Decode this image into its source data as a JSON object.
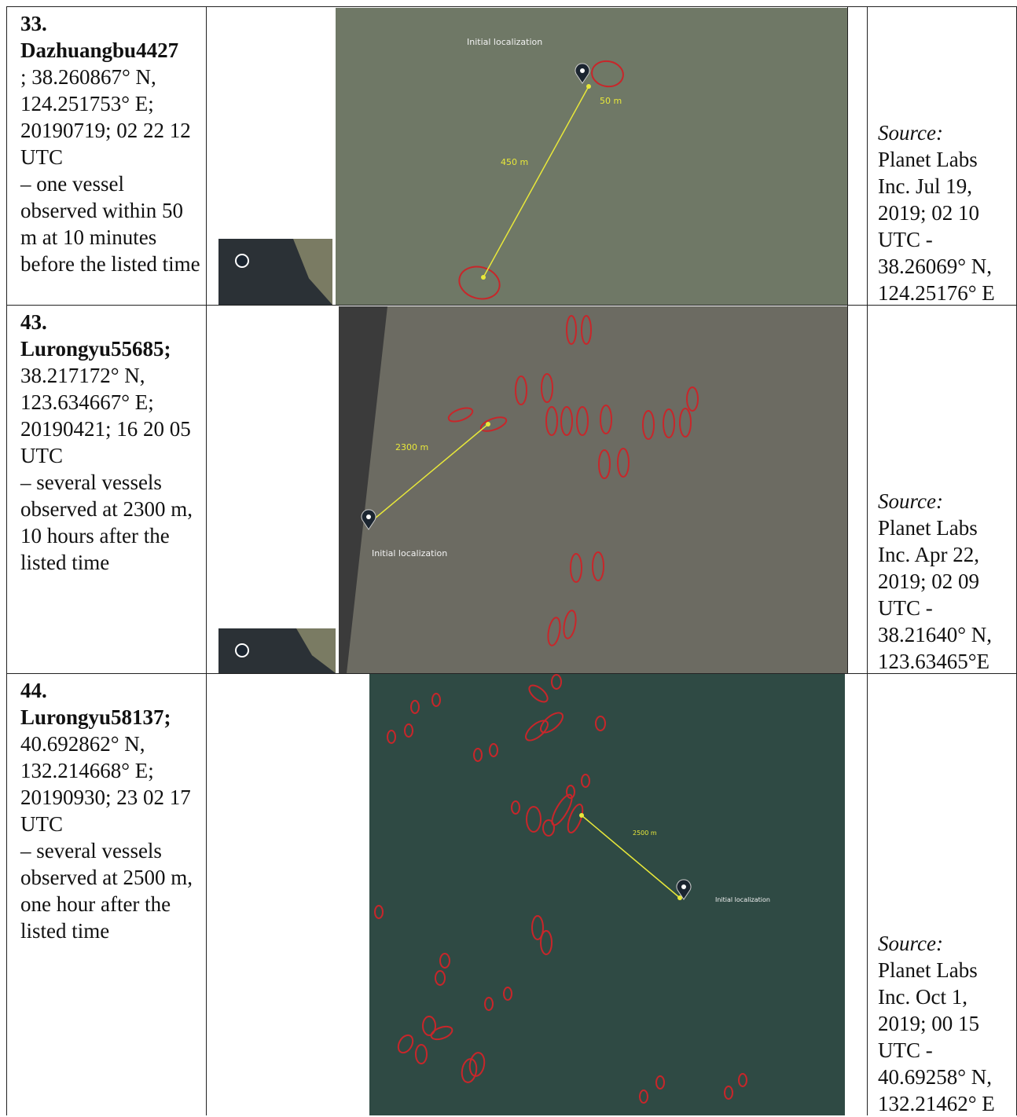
{
  "rows": [
    {
      "number": "33.",
      "name": "Dazhuangbu4427",
      "details": "; 38.260867° N, 124.251753° E; 20190719; 02 22 12 UTC",
      "observation": "– one vessel observed within 50 m at 10 minutes before the listed time",
      "image_labels": {
        "localization": "Initial localization",
        "distance": "450 m",
        "offset": "50 m"
      },
      "source_label": "Source:",
      "source": "Planet Labs Inc. Jul 19, 2019; 02 10 UTC - 38.26069° N, 124.25176° E"
    },
    {
      "number": "43.",
      "name": "Lurongyu55685;",
      "details": "38.217172° N, 123.634667° E; 20190421; 16 20 05 UTC",
      "observation": "– several vessels observed at 2300 m, 10 hours after the listed time",
      "image_labels": {
        "localization": "Initial localization",
        "distance": "2300 m"
      },
      "source_label": "Source:",
      "source": "Planet Labs Inc. Apr 22, 2019; 02 09 UTC - 38.21640° N, 123.63465°E"
    },
    {
      "number": "44.",
      "name": "Lurongyu58137;",
      "details": "40.692862° N, 132.214668° E; 20190930; 23 02 17 UTC",
      "observation": "– several vessels observed at 2500 m, one hour after the listed time",
      "image_labels": {
        "localization": "Initial localization",
        "distance": "2500 m"
      },
      "source_label": "Source:",
      "source": "Planet Labs Inc. Oct 1, 2019; 00 15 UTC - 40.69258° N, 132.21462° E"
    }
  ]
}
